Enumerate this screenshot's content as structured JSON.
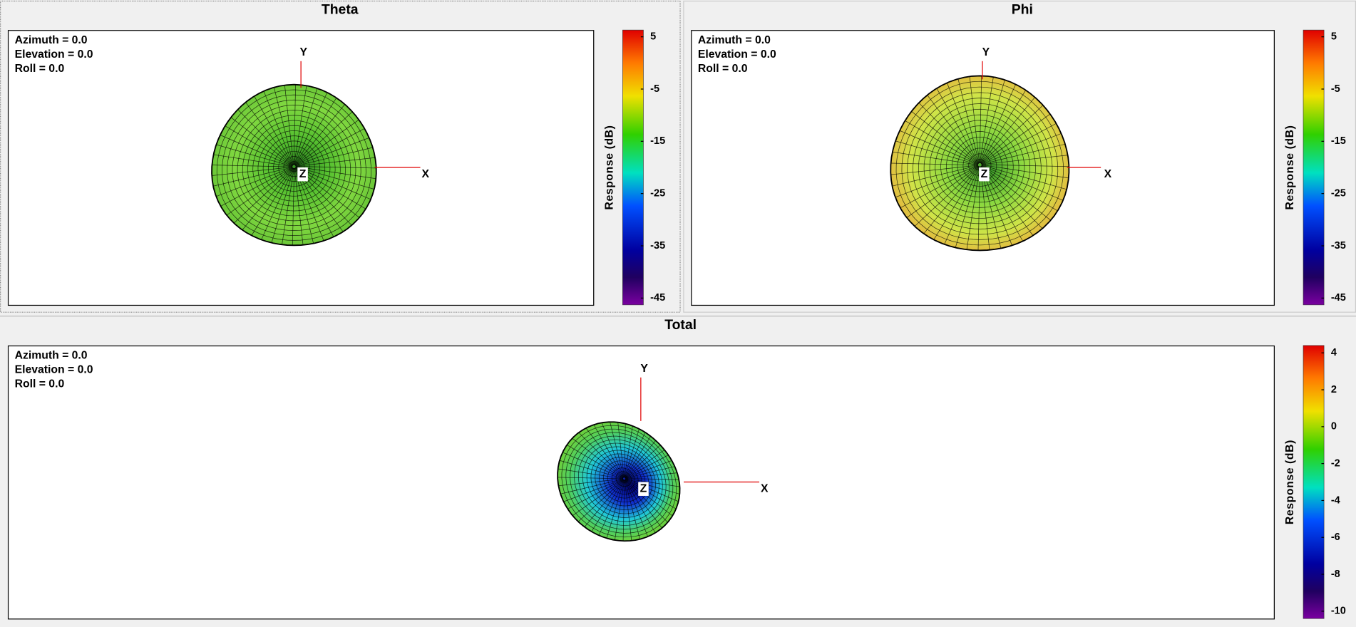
{
  "panels": [
    {
      "title": "Theta",
      "view_labels": [
        "Azimuth = 0.0",
        "Elevation = 0.0",
        "Roll = 0.0"
      ],
      "axis_labels": {
        "x": "X",
        "y": "Y",
        "z": "Z"
      },
      "colorbar": {
        "label": "Response (dB)",
        "lim": [
          -46.3,
          6.3
        ],
        "ticks": [
          5,
          -5,
          -15,
          -25,
          -35,
          -45
        ]
      }
    },
    {
      "title": "Phi",
      "view_labels": [
        "Azimuth = 0.0",
        "Elevation = 0.0",
        "Roll = 0.0"
      ],
      "axis_labels": {
        "x": "X",
        "y": "Y",
        "z": "Z"
      },
      "colorbar": {
        "label": "Response (dB)",
        "lim": [
          -46.3,
          6.3
        ],
        "ticks": [
          5,
          -5,
          -15,
          -25,
          -35,
          -45
        ]
      }
    },
    {
      "title": "Total",
      "view_labels": [
        "Azimuth = 0.0",
        "Elevation = 0.0",
        "Roll = 0.0"
      ],
      "axis_labels": {
        "x": "X",
        "y": "Y",
        "z": "Z"
      },
      "colorbar": {
        "label": "Response (dB)",
        "lim": [
          -10.4,
          4.4
        ],
        "ticks": [
          4,
          2,
          0,
          -2,
          -4,
          -6,
          -8,
          -10
        ]
      }
    }
  ]
}
